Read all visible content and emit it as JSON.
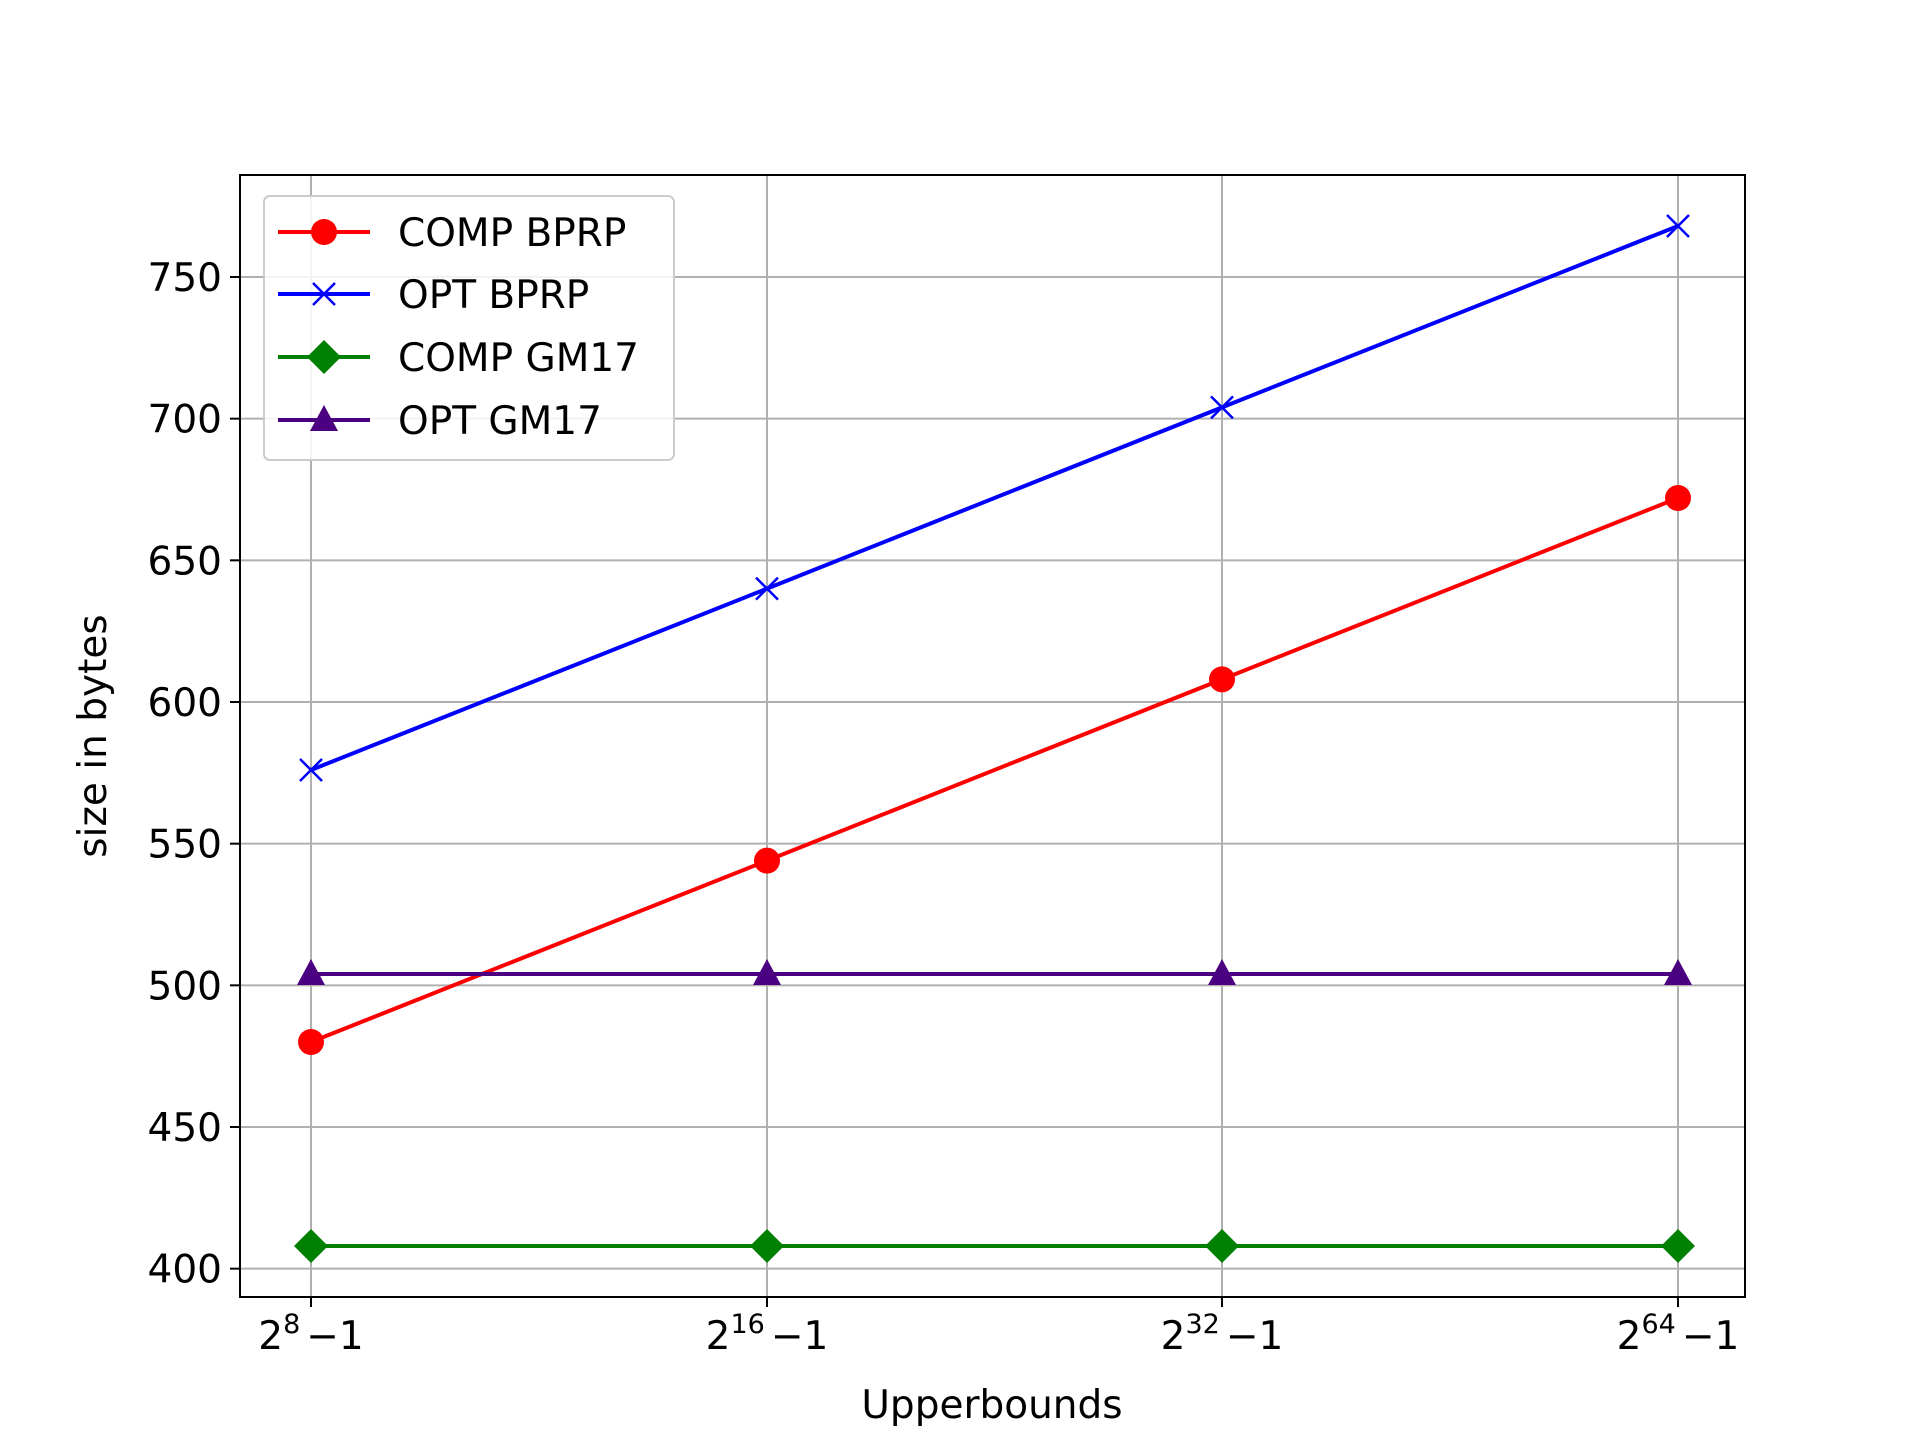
{
  "chart_data": {
    "type": "line",
    "title": "",
    "xlabel": "Upperbounds",
    "ylabel": "size in bytes",
    "categories": [
      {
        "base": "2",
        "exp": "8",
        "rest": "−1"
      },
      {
        "base": "2",
        "exp": "16",
        "rest": "−1"
      },
      {
        "base": "2",
        "exp": "32",
        "rest": "−1"
      },
      {
        "base": "2",
        "exp": "64",
        "rest": "−1"
      }
    ],
    "ylim": [
      390,
      786
    ],
    "yticks": [
      "400",
      "450",
      "500",
      "550",
      "600",
      "650",
      "700",
      "750"
    ],
    "grid": true,
    "legend_position": "upper-left",
    "series": [
      {
        "name": "COMP BPRP",
        "color": "#ff0000",
        "marker": "circle",
        "values": [
          480,
          544,
          608,
          672
        ]
      },
      {
        "name": "OPT BPRP",
        "color": "#0000ff",
        "marker": "x",
        "values": [
          576,
          640,
          704,
          768
        ]
      },
      {
        "name": "COMP GM17",
        "color": "#008000",
        "marker": "diamond",
        "values": [
          408,
          408,
          408,
          408
        ]
      },
      {
        "name": "OPT GM17",
        "color": "#4b0082",
        "marker": "triangle",
        "values": [
          504,
          504,
          504,
          504
        ]
      }
    ]
  }
}
